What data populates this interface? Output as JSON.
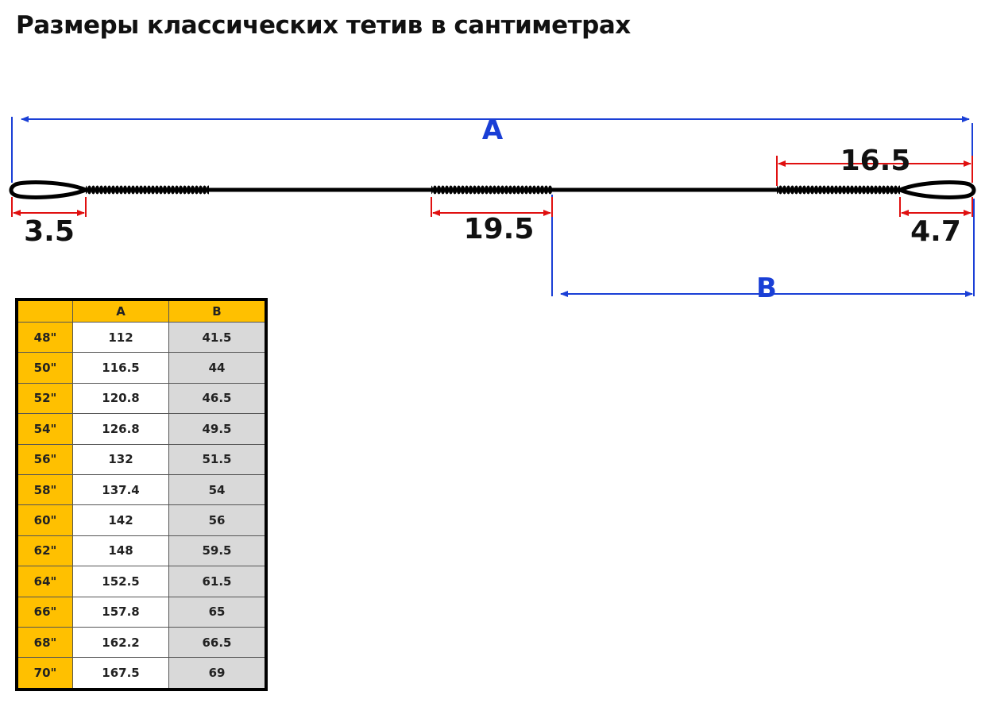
{
  "title": "Размеры классических тетив в сантиметрах",
  "diagram": {
    "labels": {
      "A": "A",
      "B": "B",
      "loop_left": "3.5",
      "center_serving": "19.5",
      "right_serving": "16.5",
      "loop_right": "4.7"
    },
    "colors": {
      "overall_dims": "#1a3fd6",
      "part_dims": "#e01010",
      "string": "#000000"
    }
  },
  "table": {
    "headers": [
      "",
      "A",
      "B"
    ],
    "rows": [
      {
        "size": "48\"",
        "A": "112",
        "B": "41.5"
      },
      {
        "size": "50\"",
        "A": "116.5",
        "B": "44"
      },
      {
        "size": "52\"",
        "A": "120.8",
        "B": "46.5"
      },
      {
        "size": "54\"",
        "A": "126.8",
        "B": "49.5"
      },
      {
        "size": "56\"",
        "A": "132",
        "B": "51.5"
      },
      {
        "size": "58\"",
        "A": "137.4",
        "B": "54"
      },
      {
        "size": "60\"",
        "A": "142",
        "B": "56"
      },
      {
        "size": "62\"",
        "A": "148",
        "B": "59.5"
      },
      {
        "size": "64\"",
        "A": "152.5",
        "B": "61.5"
      },
      {
        "size": "66\"",
        "A": "157.8",
        "B": "65"
      },
      {
        "size": "68\"",
        "A": "162.2",
        "B": "66.5"
      },
      {
        "size": "70\"",
        "A": "167.5",
        "B": "69"
      }
    ]
  }
}
